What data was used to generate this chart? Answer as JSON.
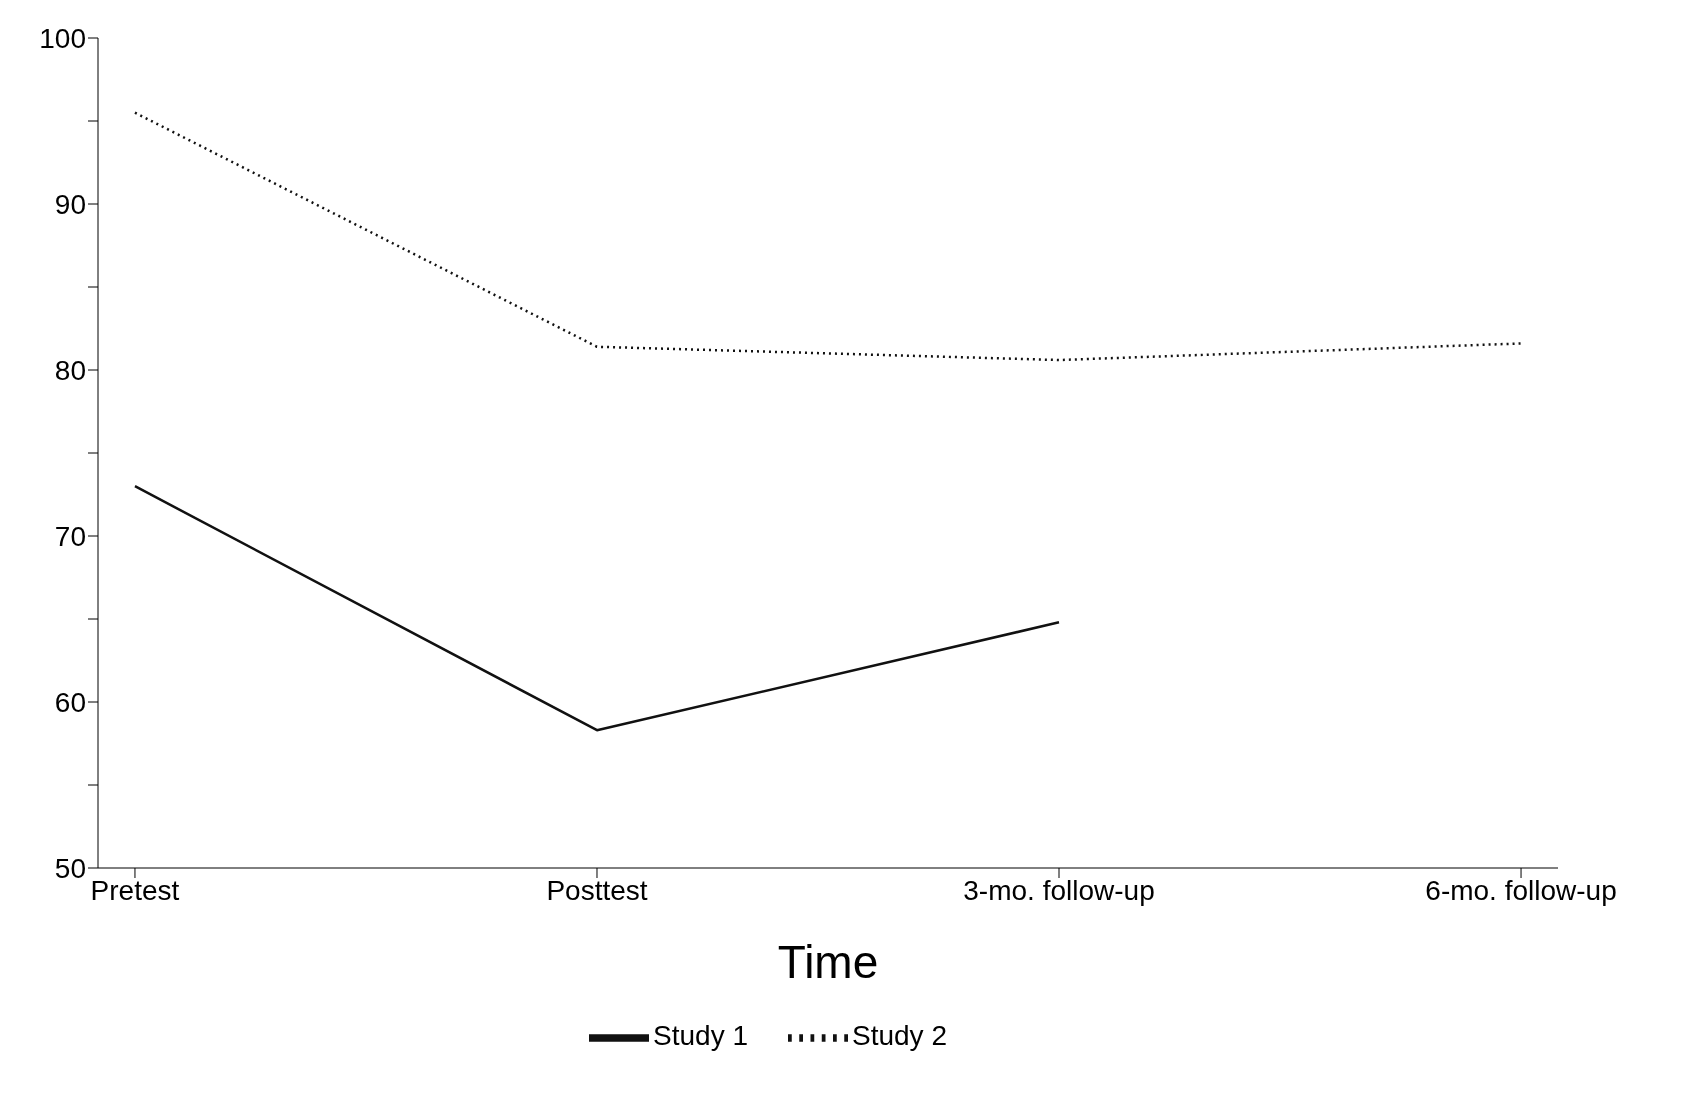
{
  "chart_data": {
    "type": "line",
    "xlabel": "Time",
    "categories": [
      "Pretest",
      "Posttest",
      "3-mo. follow-up",
      "6-mo. follow-up"
    ],
    "series": [
      {
        "name": "Study 1",
        "color": "#111111",
        "line_style": "solid",
        "values": [
          73,
          58.3,
          64.8,
          null
        ]
      },
      {
        "name": "Study 2",
        "color": "#111111",
        "line_style": "dotted",
        "values": [
          95.5,
          81.4,
          80.6,
          81.6
        ]
      }
    ],
    "ylim": [
      50,
      100
    ],
    "yticks": [
      50,
      {
        "value": 55,
        "label": null
      },
      60,
      {
        "value": 65,
        "label": null
      },
      70,
      {
        "value": 75,
        "label": null
      },
      80,
      {
        "value": 85,
        "label": null
      },
      90,
      {
        "value": 95,
        "label": null
      },
      100
    ],
    "grid": false,
    "legend": "bottom",
    "marker": "none"
  }
}
